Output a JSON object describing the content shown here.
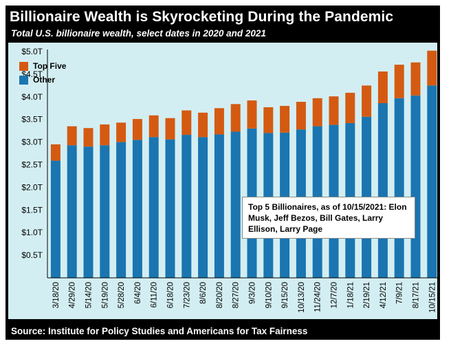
{
  "title": "Billionaire Wealth is Skyrocketing During the Pandemic",
  "subtitle": "Total U.S. billionaire wealth, select dates in 2020 and 2021",
  "source": "Source: Institute for Policy Studies and Americans for Tax Fairness",
  "annotation": "Top 5 Billionaires, as of 10/15/2021: Elon Musk, Jeff Bezos, Bill Gates, Larry Ellison, Larry Page",
  "colors": {
    "other": "#1a75b0",
    "top_five": "#d45a12",
    "plot_bg": "#d3eef2",
    "frame": "#000000"
  },
  "chart_data": {
    "type": "bar",
    "stacked": true,
    "title": "Billionaire Wealth is Skyrocketing During the Pandemic",
    "subtitle": "Total U.S. billionaire wealth, select dates in 2020 and 2021",
    "xlabel": "",
    "ylabel": "",
    "ylim": [
      0,
      5.0
    ],
    "yticks": [
      0.5,
      1.0,
      1.5,
      2.0,
      2.5,
      3.0,
      3.5,
      4.0,
      4.5,
      5.0
    ],
    "ytick_labels": [
      "$0.5T",
      "$1.0T",
      "$1.5T",
      "$2.0T",
      "$2.5T",
      "$3.0T",
      "$3.5T",
      "$4.0T",
      "$4.5T",
      "$5.0T"
    ],
    "legend_position": "top-left",
    "categories": [
      "3/18/20",
      "4/29/20",
      "5/14/20",
      "5/19/20",
      "5/28/20",
      "6/4/20",
      "6/11/20",
      "6/18/20",
      "7/23/20",
      "8/6/20",
      "8/20/20",
      "8/27/20",
      "9/3/20",
      "9/10/20",
      "9/15/20",
      "10/13/20",
      "11/24/20",
      "12/7/20",
      "1/18/21",
      "2/19/21",
      "4/12/21",
      "7/9/21",
      "8/17/21",
      "10/15/21"
    ],
    "series": [
      {
        "name": "Other",
        "color": "#1a75b0",
        "values": [
          2.59,
          2.93,
          2.9,
          2.93,
          3.0,
          3.05,
          3.11,
          3.06,
          3.16,
          3.11,
          3.17,
          3.23,
          3.3,
          3.2,
          3.21,
          3.28,
          3.35,
          3.38,
          3.42,
          3.56,
          3.86,
          3.97,
          4.03,
          4.25
        ]
      },
      {
        "name": "Top Five",
        "color": "#d45a12",
        "values": [
          0.36,
          0.42,
          0.41,
          0.46,
          0.43,
          0.46,
          0.48,
          0.47,
          0.54,
          0.54,
          0.58,
          0.61,
          0.62,
          0.57,
          0.59,
          0.61,
          0.62,
          0.63,
          0.67,
          0.69,
          0.7,
          0.74,
          0.73,
          0.77
        ]
      }
    ]
  }
}
